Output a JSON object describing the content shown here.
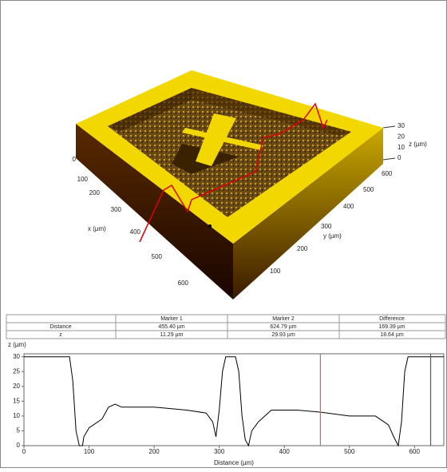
{
  "surface_plot": {
    "x_label": "x (µm)",
    "y_label": "y (µm)",
    "z_label": "z (µm)",
    "x_ticks": [
      0,
      100,
      200,
      300,
      400,
      500,
      600
    ],
    "y_ticks": [
      0,
      100,
      200,
      300,
      400,
      500,
      600
    ],
    "z_ticks": [
      0,
      10,
      20,
      30
    ]
  },
  "table": {
    "headers": [
      "Marker 1",
      "Marker 2",
      "Difference"
    ],
    "rows": [
      [
        "Distance",
        "455.40 µm",
        "624.79 µm",
        "169.39 µm"
      ],
      [
        "z",
        "11.29 µm",
        "29.93 µm",
        "18.64 µm"
      ]
    ]
  },
  "chart_data": {
    "type": "line",
    "y_label": "z (µm)",
    "x_label": "Distance (µm)",
    "xlim": [
      0,
      645
    ],
    "ylim": [
      0,
      31
    ],
    "xticks": [
      0,
      100,
      200,
      300,
      400,
      500,
      600
    ],
    "yticks": [
      0,
      5,
      10,
      15,
      20,
      25,
      30
    ],
    "series": [
      {
        "color": "#000000",
        "x": [
          0,
          70,
          75,
          80,
          85,
          90,
          92,
          100,
          120,
          130,
          140,
          150,
          200,
          250,
          280,
          290,
          295,
          300,
          305,
          310,
          325,
          330,
          335,
          340,
          345,
          350,
          360,
          380,
          400,
          420,
          456,
          500,
          540,
          560,
          568,
          575,
          580,
          585,
          590,
          645
        ],
        "values": [
          30,
          30,
          22,
          5,
          0,
          0,
          3,
          6,
          9,
          13,
          14,
          13,
          13,
          12,
          11,
          8,
          3,
          12,
          25,
          30,
          30,
          25,
          10,
          2,
          0,
          5,
          8,
          12,
          12,
          12,
          11.3,
          10,
          10,
          7,
          3,
          0,
          8,
          25,
          30,
          30
        ]
      }
    ],
    "markers": [
      {
        "x": 455.4,
        "color": "#e06060"
      },
      {
        "x": 624.79,
        "color": "#4050c0"
      }
    ]
  }
}
